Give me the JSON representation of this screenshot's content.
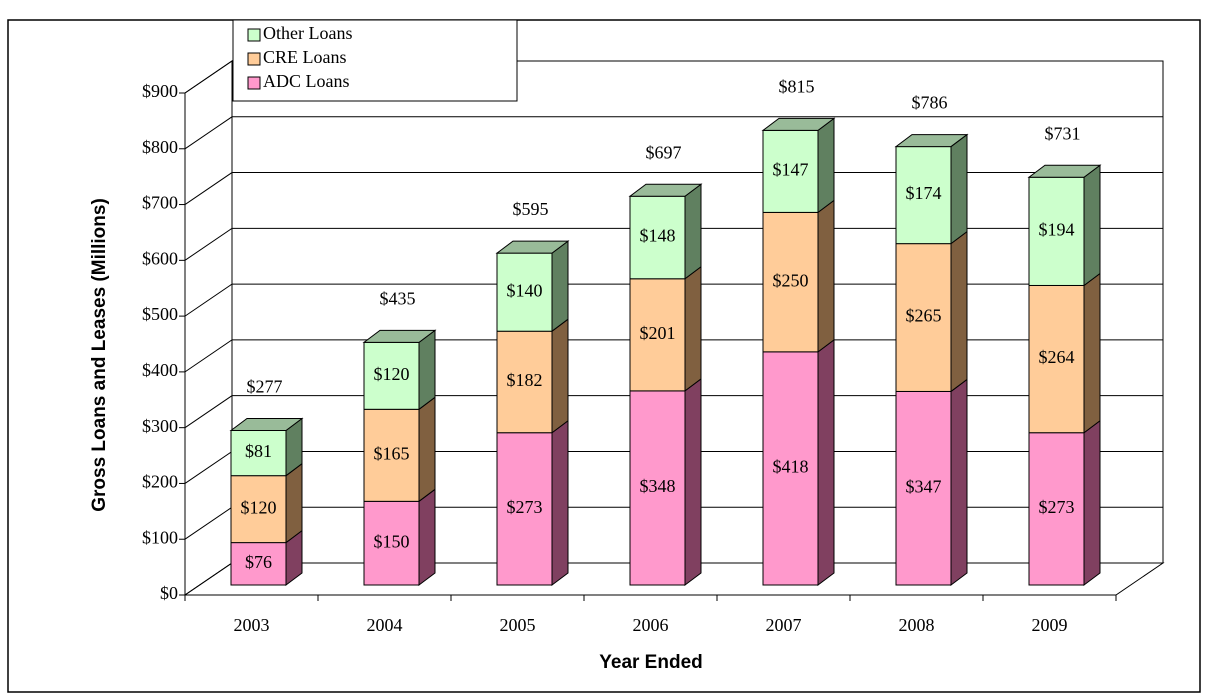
{
  "chart_data": {
    "type": "bar3d_stacked",
    "y_label": "Gross Loans and Leases  (Millions)",
    "x_label": "Year Ended",
    "categories": [
      "2003",
      "2004",
      "2005",
      "2006",
      "2007",
      "2008",
      "2009"
    ],
    "series": [
      {
        "name": "ADC Loans",
        "color": "#ff99cc",
        "side_color": "#804060",
        "top_color": "#cc7aa3",
        "values": [
          76,
          150,
          273,
          348,
          418,
          347,
          273
        ],
        "value_labels": [
          "$76",
          "$150",
          "$273",
          "$348",
          "$418",
          "$347",
          "$273"
        ]
      },
      {
        "name": "CRE Loans",
        "color": "#ffcc99",
        "side_color": "#806040",
        "top_color": "#cca37a",
        "values": [
          120,
          165,
          182,
          201,
          250,
          265,
          264
        ],
        "value_labels": [
          "$120",
          "$165",
          "$182",
          "$201",
          "$250",
          "$265",
          "$264"
        ]
      },
      {
        "name": "Other Loans",
        "color": "#ccffcc",
        "side_color": "#608060",
        "top_color": "#99bb99",
        "values": [
          81,
          120,
          140,
          148,
          147,
          174,
          194
        ],
        "value_labels": [
          "$81",
          "$120",
          "$140",
          "$148",
          "$147",
          "$174",
          "$194"
        ]
      }
    ],
    "totals": [
      277,
      435,
      595,
      697,
      815,
      786,
      731
    ],
    "total_labels": [
      "$277",
      "$435",
      "$595",
      "$697",
      "$815",
      "$786",
      "$731"
    ],
    "ylim": [
      0,
      900
    ],
    "yticks": [
      {
        "value": 0,
        "label": "$0"
      },
      {
        "value": 100,
        "label": "$100"
      },
      {
        "value": 200,
        "label": "$200"
      },
      {
        "value": 300,
        "label": "$300"
      },
      {
        "value": 400,
        "label": "$400"
      },
      {
        "value": 500,
        "label": "$500"
      },
      {
        "value": 600,
        "label": "$600"
      },
      {
        "value": 700,
        "label": "$700"
      },
      {
        "value": 800,
        "label": "$800"
      },
      {
        "value": 900,
        "label": "$900"
      }
    ],
    "grid": true,
    "legend": "top-left"
  }
}
